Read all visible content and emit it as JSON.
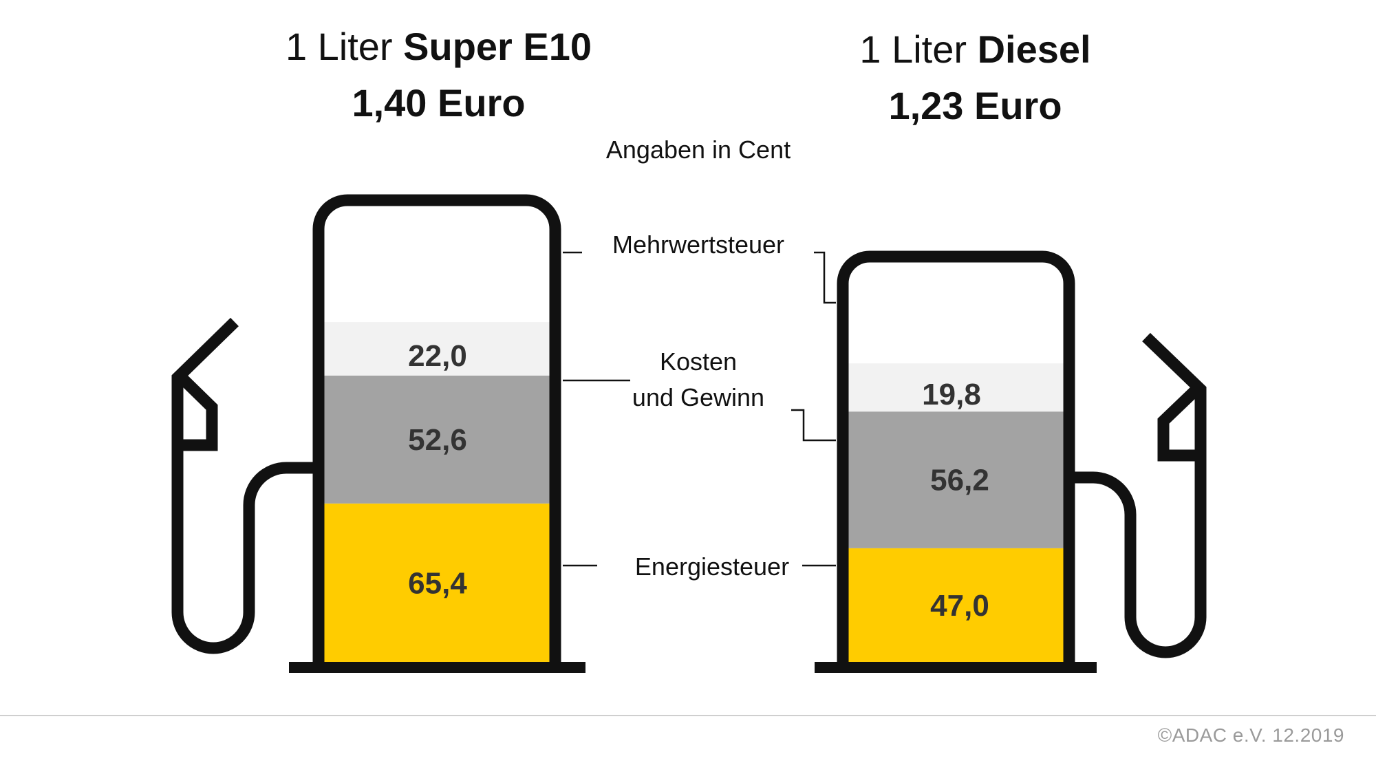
{
  "header": {
    "left": {
      "prefix": "1 Liter",
      "fuel": "Super E10",
      "price": "1,40 Euro"
    },
    "right": {
      "prefix": "1 Liter",
      "fuel": "Diesel",
      "price": "1,23 Euro"
    }
  },
  "unit_note": "Angaben in Cent",
  "labels": {
    "vat": "Mehrwertsteuer",
    "cost_line1": "Kosten",
    "cost_line2": "und Gewinn",
    "energy": "Energiesteuer"
  },
  "colors": {
    "vat": "#f2f2f2",
    "cost": "#a3a3a3",
    "energy": "#ffcc00",
    "outline": "#111111"
  },
  "chart_data": {
    "type": "bar",
    "stacked": true,
    "categories": [
      "Super E10",
      "Diesel"
    ],
    "series": [
      {
        "name": "Energiesteuer",
        "values": [
          65.4,
          47.0
        ],
        "labels": [
          "65,4",
          "47,0"
        ]
      },
      {
        "name": "Kosten und Gewinn",
        "values": [
          52.6,
          56.2
        ],
        "labels": [
          "52,6",
          "56,2"
        ]
      },
      {
        "name": "Mehrwertsteuer",
        "values": [
          22.0,
          19.8
        ],
        "labels": [
          "22,0",
          "19,8"
        ]
      }
    ],
    "totals": [
      140.0,
      123.0
    ],
    "unit": "Cent"
  },
  "footer": "©ADAC e.V.  12.2019"
}
